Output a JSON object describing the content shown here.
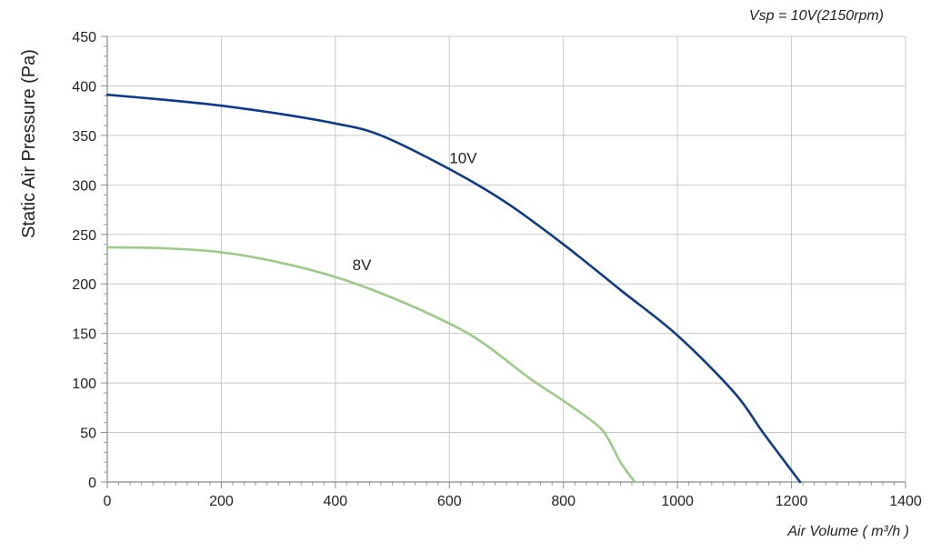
{
  "chart_data": {
    "type": "line",
    "title": "",
    "annotation": "Vsp = 10V(2150rpm)",
    "xlabel": "Air Volume ( m³/h )",
    "ylabel": "Static Air Pressure  (Pa)",
    "xlim": [
      0,
      1400
    ],
    "ylim": [
      0,
      450
    ],
    "xticks": [
      0,
      200,
      400,
      600,
      800,
      1000,
      1200,
      1400
    ],
    "yticks": [
      0,
      50,
      100,
      150,
      200,
      250,
      300,
      350,
      400,
      450
    ],
    "grid": true,
    "legend": "none",
    "series": [
      {
        "name": "10V",
        "color": "#0c3a8c",
        "label_at": [
          600,
          322
        ],
        "points": [
          [
            0,
            391
          ],
          [
            100,
            386
          ],
          [
            200,
            380
          ],
          [
            300,
            372
          ],
          [
            400,
            362
          ],
          [
            480,
            350
          ],
          [
            600,
            316
          ],
          [
            700,
            282
          ],
          [
            800,
            240
          ],
          [
            900,
            194
          ],
          [
            1000,
            148
          ],
          [
            1100,
            90
          ],
          [
            1150,
            50
          ],
          [
            1215,
            0
          ]
        ]
      },
      {
        "name": "8V",
        "color": "#9ccb87",
        "label_at": [
          430,
          214
        ],
        "points": [
          [
            0,
            237
          ],
          [
            100,
            236
          ],
          [
            200,
            232
          ],
          [
            300,
            222
          ],
          [
            400,
            207
          ],
          [
            500,
            186
          ],
          [
            600,
            160
          ],
          [
            660,
            140
          ],
          [
            740,
            105
          ],
          [
            800,
            82
          ],
          [
            860,
            57
          ],
          [
            880,
            42
          ],
          [
            900,
            20
          ],
          [
            925,
            0
          ]
        ]
      }
    ]
  }
}
